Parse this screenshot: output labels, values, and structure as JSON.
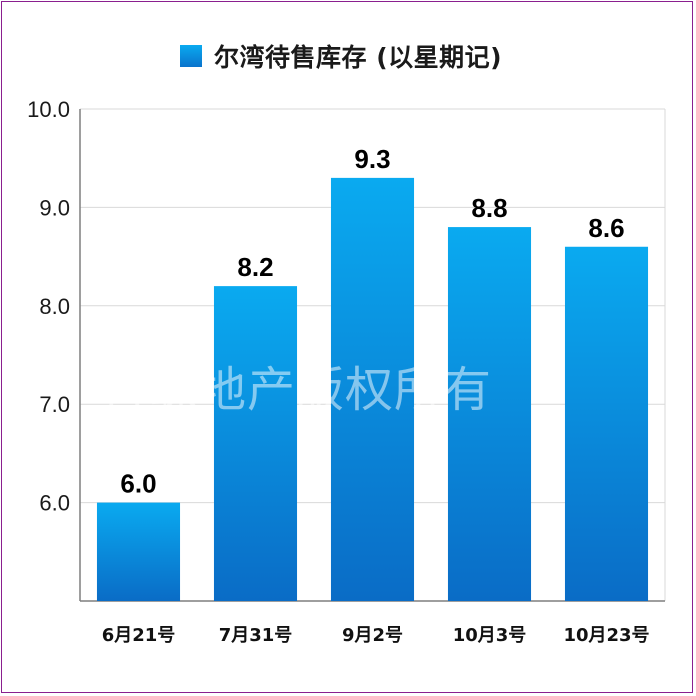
{
  "chart_data": {
    "type": "bar",
    "title": "",
    "xlabel": "",
    "ylabel": "",
    "categories": [
      "6月21号",
      "7月31号",
      "9月2号",
      "10月3号",
      "10月23号"
    ],
    "series": [
      {
        "name": "尔湾待售库存 (以星期记)",
        "values": [
          6.0,
          8.2,
          9.3,
          8.8,
          8.6
        ],
        "data_labels": [
          "6.0",
          "8.2",
          "9.3",
          "8.8",
          "8.6"
        ],
        "color": "#0a8fe0"
      }
    ],
    "ylim": [
      5.0,
      10.0
    ],
    "yticks": [
      6.0,
      7.0,
      8.0,
      9.0,
      10.0
    ],
    "ytick_labels": [
      "6.0",
      "7.0",
      "8.0",
      "9.0",
      "10.0"
    ],
    "grid": true,
    "legend_position": "top-center"
  },
  "watermark": "曾嵘地产版权所有",
  "colors": {
    "bar_top": "#0aaaf0",
    "bar_bottom": "#0a6cc6",
    "grid": "#d9d9d9",
    "axis": "#7f7f7f",
    "frame": "#8a1f8f"
  }
}
